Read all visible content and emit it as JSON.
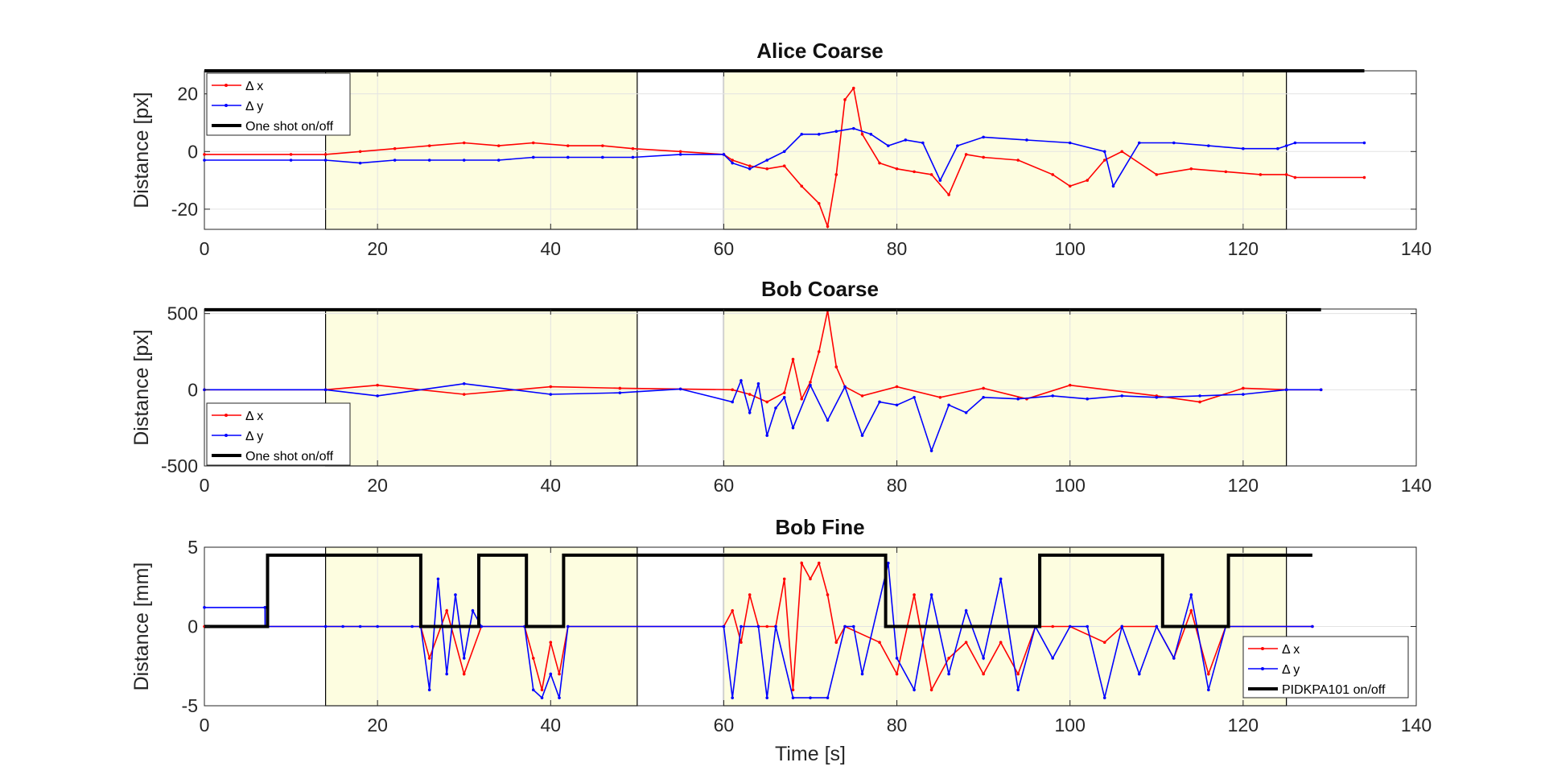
{
  "chart_data": [
    {
      "type": "line",
      "title": "Alice Coarse",
      "ylabel": "Distance [px]",
      "xlabel": "",
      "xlim": [
        0,
        140
      ],
      "ylim": [
        -27,
        28
      ],
      "xticks": [
        0,
        20,
        40,
        60,
        80,
        100,
        120,
        140
      ],
      "yticks": [
        -20,
        0,
        20
      ],
      "grid": true,
      "legend": {
        "position": "top-left",
        "entries": [
          "Δ x",
          "Δ y",
          "One shot on/off"
        ]
      },
      "highlight_spans": [
        [
          14,
          50
        ],
        [
          60,
          125
        ]
      ],
      "series": [
        {
          "name": "Δ x",
          "color": "#ff0000",
          "x": [
            0,
            10,
            14,
            18,
            22,
            26,
            30,
            34,
            38,
            42,
            46,
            49.5,
            55,
            60,
            61,
            63,
            65,
            67,
            69,
            71,
            72,
            73,
            74,
            75,
            76,
            78,
            80,
            82,
            84,
            86,
            88,
            90,
            94,
            98,
            100,
            102,
            104,
            106,
            110,
            114,
            118,
            122,
            125,
            126,
            134
          ],
          "y": [
            -1,
            -1,
            -1,
            0,
            1,
            2,
            3,
            2,
            3,
            2,
            2,
            1,
            0,
            -1,
            -3,
            -5,
            -6,
            -5,
            -12,
            -18,
            -26,
            -8,
            18,
            22,
            6,
            -4,
            -6,
            -7,
            -8,
            -15,
            -1,
            -2,
            -3,
            -8,
            -12,
            -10,
            -3,
            0,
            -8,
            -6,
            -7,
            -8,
            -8,
            -9,
            -9
          ]
        },
        {
          "name": "Δ y",
          "color": "#0000ff",
          "x": [
            0,
            10,
            14,
            18,
            22,
            26,
            30,
            34,
            38,
            42,
            46,
            49.5,
            55,
            60,
            61,
            63,
            65,
            67,
            69,
            71,
            73,
            75,
            77,
            79,
            81,
            83,
            85,
            87,
            90,
            95,
            100,
            104,
            105,
            108,
            112,
            116,
            120,
            124,
            125,
            126,
            134
          ],
          "y": [
            -3,
            -3,
            -3,
            -4,
            -3,
            -3,
            -3,
            -3,
            -2,
            -2,
            -2,
            -2,
            -1,
            -1,
            -4,
            -6,
            -3,
            0,
            6,
            6,
            7,
            8,
            6,
            2,
            4,
            3,
            -10,
            2,
            5,
            4,
            3,
            0,
            -12,
            3,
            3,
            2,
            1,
            1,
            2,
            3,
            3
          ]
        },
        {
          "name": "One shot on/off",
          "color": "#000000",
          "x": [
            0,
            134
          ],
          "y": [
            28,
            28
          ]
        }
      ]
    },
    {
      "type": "line",
      "title": "Bob Coarse",
      "ylabel": "Distance [px]",
      "xlabel": "",
      "xlim": [
        0,
        140
      ],
      "ylim": [
        -500,
        530
      ],
      "xticks": [
        0,
        20,
        40,
        60,
        80,
        100,
        120,
        140
      ],
      "yticks": [
        -500,
        0,
        500
      ],
      "grid": true,
      "legend": {
        "position": "bottom-left",
        "entries": [
          "Δ x",
          "Δ y",
          "One shot on/off"
        ]
      },
      "highlight_spans": [
        [
          14,
          50
        ],
        [
          60,
          125
        ]
      ],
      "series": [
        {
          "name": "Δ x",
          "color": "#ff0000",
          "x": [
            0,
            14,
            20,
            30,
            40,
            48,
            55,
            61,
            63,
            65,
            67,
            68,
            69,
            70,
            71,
            72,
            73,
            74,
            76,
            80,
            85,
            90,
            95,
            100,
            110,
            115,
            120,
            125,
            129
          ],
          "y": [
            0,
            0,
            30,
            -30,
            20,
            10,
            5,
            0,
            -30,
            -80,
            -20,
            200,
            -60,
            50,
            250,
            520,
            150,
            20,
            -40,
            20,
            -50,
            10,
            -60,
            30,
            -40,
            -80,
            10,
            0,
            0
          ]
        },
        {
          "name": "Δ y",
          "color": "#0000ff",
          "x": [
            0,
            14,
            20,
            30,
            40,
            48,
            55,
            61,
            62,
            63,
            64,
            65,
            66,
            67,
            68,
            70,
            72,
            74,
            76,
            78,
            80,
            82,
            84,
            86,
            88,
            90,
            94,
            98,
            102,
            106,
            110,
            115,
            120,
            125,
            129
          ],
          "y": [
            0,
            0,
            -40,
            40,
            -30,
            -20,
            5,
            -80,
            60,
            -150,
            40,
            -300,
            -120,
            -50,
            -250,
            30,
            -200,
            20,
            -300,
            -80,
            -100,
            -50,
            -400,
            -100,
            -150,
            -50,
            -60,
            -40,
            -60,
            -40,
            -50,
            -40,
            -30,
            0,
            0
          ]
        },
        {
          "name": "One shot on/off",
          "color": "#000000",
          "x": [
            0,
            129
          ],
          "y": [
            525,
            525
          ]
        }
      ]
    },
    {
      "type": "line",
      "title": "Bob Fine",
      "ylabel": "Distance [mm]",
      "xlabel": "Time [s]",
      "xlim": [
        0,
        140
      ],
      "ylim": [
        -5,
        5
      ],
      "xticks": [
        0,
        20,
        40,
        60,
        80,
        100,
        120,
        140
      ],
      "yticks": [
        -5,
        0,
        5
      ],
      "grid": true,
      "legend": {
        "position": "bottom-right",
        "entries": [
          "Δ x",
          "Δ y",
          "PIDKPA101 on/off"
        ]
      },
      "highlight_spans": [
        [
          14,
          50
        ],
        [
          60,
          125
        ]
      ],
      "series": [
        {
          "name": "Δ x",
          "color": "#ff0000",
          "x": [
            0,
            7,
            25,
            26,
            28,
            30,
            32,
            37,
            38,
            39,
            40,
            41,
            42,
            60,
            61,
            62,
            63,
            64,
            65,
            66,
            67,
            68,
            69,
            70,
            71,
            72,
            73,
            74,
            78,
            80,
            82,
            84,
            86,
            88,
            90,
            92,
            94,
            96,
            98,
            100,
            104,
            106,
            110,
            112,
            114,
            116,
            118,
            128
          ],
          "y": [
            0,
            0,
            0,
            -2,
            1,
            -3,
            0,
            0,
            -2,
            -4,
            -1,
            -3,
            0,
            0,
            1,
            -1,
            2,
            0,
            0,
            0,
            3,
            -4,
            4,
            3,
            4,
            2,
            -1,
            0,
            -1,
            -3,
            2,
            -4,
            -2,
            -1,
            -3,
            -1,
            -3,
            0,
            0,
            0,
            -1,
            0,
            0,
            -2,
            1,
            -3,
            0,
            0
          ]
        },
        {
          "name": "Δ y",
          "color": "#0000ff",
          "x": [
            0,
            7,
            7.01,
            14,
            16,
            18,
            20,
            24,
            25,
            26,
            27,
            28,
            29,
            30,
            31,
            32,
            37,
            38,
            39,
            40,
            41,
            42,
            60,
            61,
            62,
            64,
            65,
            66,
            68,
            70,
            72,
            74,
            75,
            76,
            79,
            80,
            82,
            84,
            86,
            88,
            90,
            92,
            94,
            96,
            98,
            100,
            102,
            104,
            106,
            108,
            110,
            112,
            114,
            116,
            118,
            128
          ],
          "y": [
            1.2,
            1.2,
            0,
            0,
            0,
            0,
            0,
            0,
            0,
            -4,
            3,
            -3,
            2,
            -2,
            1,
            0,
            0,
            -4,
            -4.5,
            -3,
            -4.5,
            0,
            0,
            -4.5,
            0,
            0,
            -4.5,
            0,
            -4.5,
            -4.5,
            -4.5,
            0,
            0,
            -3,
            4,
            -2,
            -4,
            2,
            -3,
            1,
            -2,
            3,
            -4,
            0,
            -2,
            0,
            0,
            -4.5,
            0,
            -3,
            0,
            -2,
            2,
            -4,
            0,
            0
          ]
        },
        {
          "name": "PIDKPA101 on/off",
          "color": "#000000",
          "x": [
            0,
            7.3,
            7.3,
            25,
            25,
            31.7,
            31.7,
            37.2,
            37.2,
            41.5,
            41.5,
            78.7,
            78.7,
            96.5,
            96.5,
            110.7,
            110.7,
            118.3,
            118.3,
            128
          ],
          "y": [
            0,
            0,
            4.5,
            4.5,
            0,
            0,
            4.5,
            4.5,
            0,
            0,
            4.5,
            4.5,
            0,
            0,
            4.5,
            4.5,
            0,
            0,
            4.5,
            4.5
          ]
        }
      ]
    }
  ]
}
